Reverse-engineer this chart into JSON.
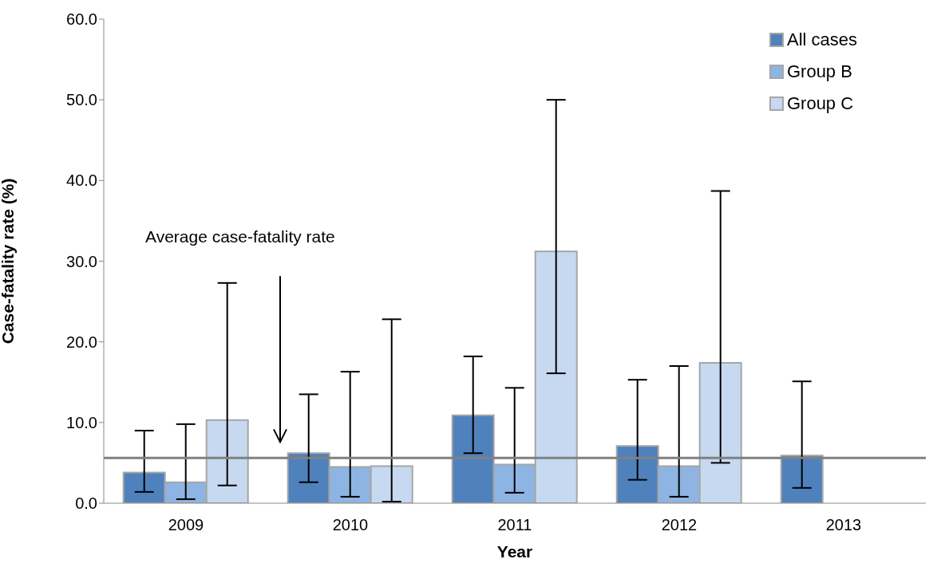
{
  "chart_data": {
    "type": "bar",
    "xlabel": "Year",
    "ylabel": "Case-fatality rate (%)",
    "categories": [
      "2009",
      "2010",
      "2011",
      "2012",
      "2013"
    ],
    "series": [
      {
        "name": "All cases",
        "color": "#4f81bd",
        "values": [
          3.8,
          6.2,
          10.9,
          7.1,
          5.9
        ],
        "errors": [
          [
            1.4,
            9.0
          ],
          [
            2.6,
            13.5
          ],
          [
            6.2,
            18.2
          ],
          [
            2.9,
            15.3
          ],
          [
            1.9,
            15.1
          ]
        ]
      },
      {
        "name": "Group B",
        "color": "#8eb4e3",
        "values": [
          2.6,
          4.5,
          4.8,
          4.6,
          null
        ],
        "errors": [
          [
            0.5,
            9.8
          ],
          [
            0.8,
            16.3
          ],
          [
            1.3,
            14.3
          ],
          [
            0.8,
            17.0
          ],
          null
        ]
      },
      {
        "name": "Group C",
        "color": "#c6d9f1",
        "values": [
          10.3,
          4.6,
          31.2,
          17.4,
          null
        ],
        "errors": [
          [
            2.2,
            27.3
          ],
          [
            0.2,
            22.8
          ],
          [
            16.1,
            50.0
          ],
          [
            5.0,
            38.7
          ],
          null
        ]
      }
    ],
    "ylim": [
      0,
      60
    ],
    "yticks": [
      {
        "value": 0,
        "label": "0.0"
      },
      {
        "value": 10,
        "label": "10.0"
      },
      {
        "value": 20,
        "label": "20.0"
      },
      {
        "value": 30,
        "label": "30.0"
      },
      {
        "value": 40,
        "label": "40.0"
      },
      {
        "value": 50,
        "label": "50.0"
      },
      {
        "value": 60,
        "label": "60.0"
      }
    ],
    "ref_lines": [
      {
        "axis": "y",
        "value": 5.6,
        "color": "#808080"
      }
    ],
    "annotations": [
      "Average case-fatality rate"
    ],
    "legend": "top right"
  }
}
